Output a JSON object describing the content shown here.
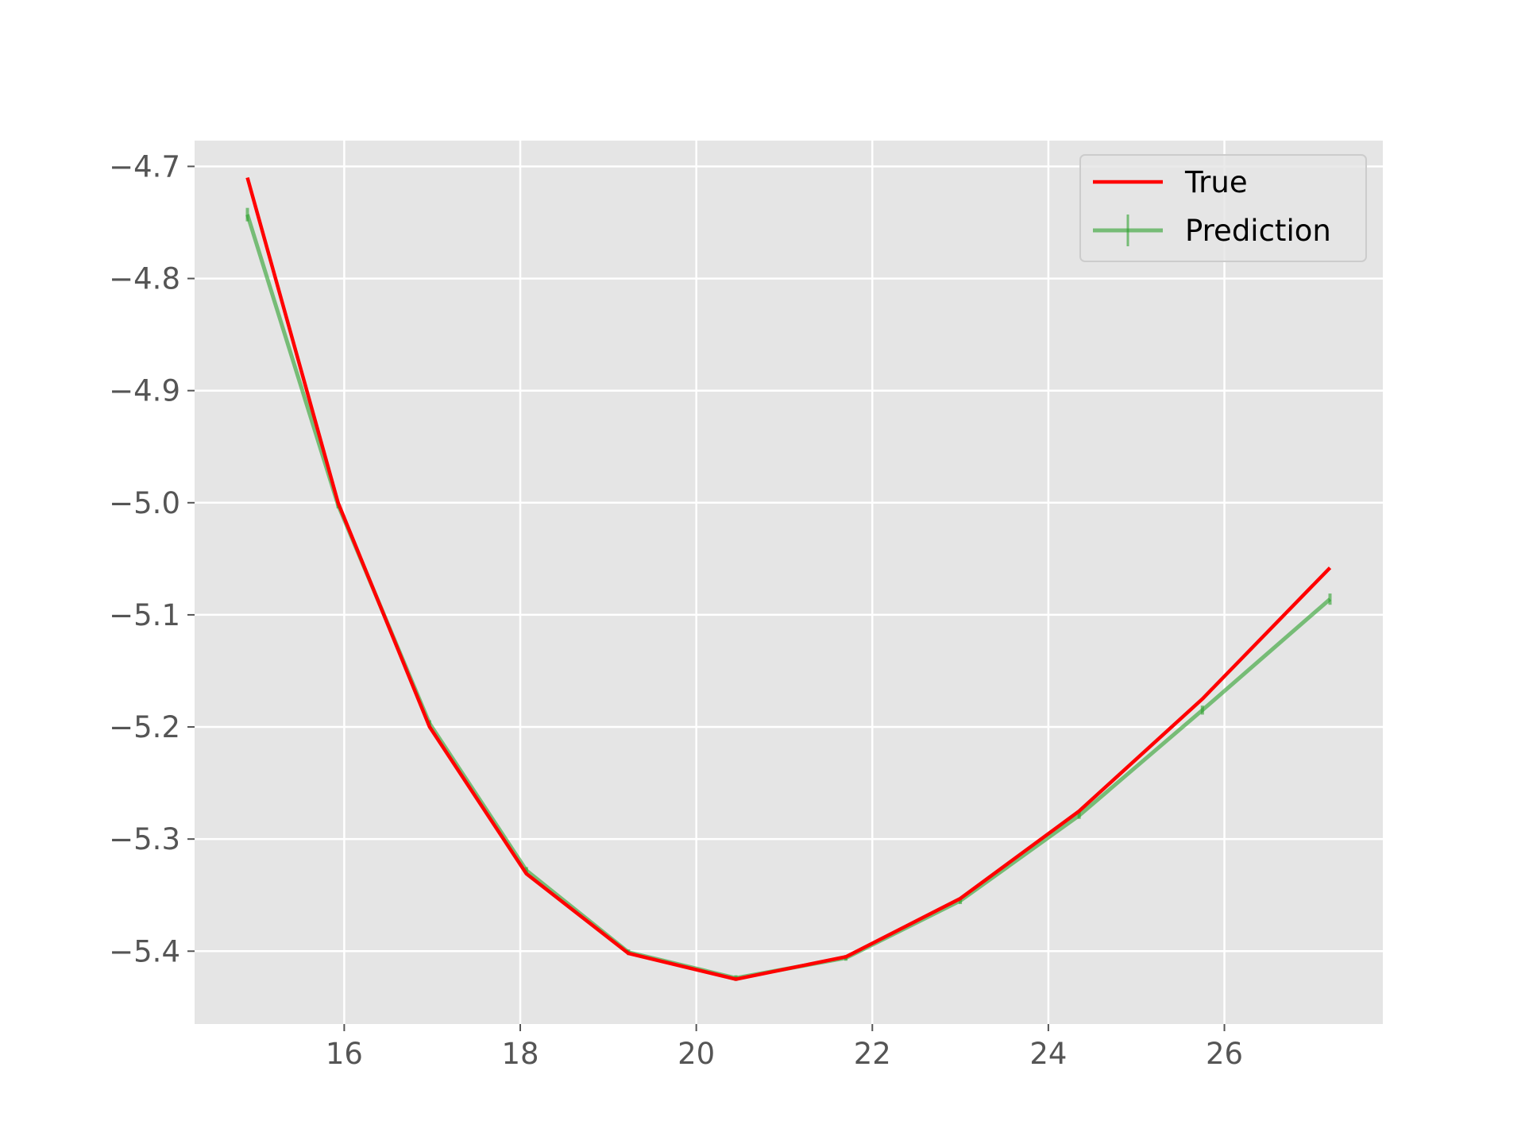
{
  "chart_data": {
    "type": "line",
    "title": "",
    "xlabel": "",
    "ylabel": "",
    "xlim": [
      14.3,
      27.8
    ],
    "ylim": [
      -5.465,
      -4.677
    ],
    "xticks": [
      16,
      18,
      20,
      22,
      24,
      26
    ],
    "yticks": [
      -4.7,
      -4.8,
      -4.9,
      -5.0,
      -5.1,
      -5.2,
      -5.3,
      -5.4
    ],
    "xtick_labels": [
      "16",
      "18",
      "20",
      "22",
      "24",
      "26"
    ],
    "ytick_labels": [
      "−4.7",
      "−4.8",
      "−4.9",
      "−5.0",
      "−5.1",
      "−5.2",
      "−5.3",
      "−5.4"
    ],
    "grid": true,
    "legend_position": "top-right",
    "series": [
      {
        "name": "True",
        "color": "#ff0000",
        "style": "line",
        "x": [
          14.9,
          15.93,
          16.97,
          18.07,
          19.23,
          20.45,
          21.7,
          23.0,
          24.35,
          25.75,
          27.2
        ],
        "y": [
          -4.71,
          -5.0,
          -5.2,
          -5.331,
          -5.402,
          -5.425,
          -5.405,
          -5.353,
          -5.275,
          -5.175,
          -5.058
        ]
      },
      {
        "name": "Prediction",
        "color": "#2ca02c",
        "style": "errorbar",
        "x": [
          14.9,
          15.93,
          16.97,
          18.07,
          19.23,
          20.45,
          21.7,
          23.0,
          24.35,
          25.75,
          27.2
        ],
        "y": [
          -4.743,
          -5.002,
          -5.197,
          -5.328,
          -5.401,
          -5.424,
          -5.406,
          -5.355,
          -5.279,
          -5.185,
          -5.086
        ],
        "err": [
          0.006,
          0.003,
          0.003,
          0.003,
          0.002,
          0.002,
          0.002,
          0.003,
          0.003,
          0.004,
          0.005
        ]
      }
    ]
  }
}
